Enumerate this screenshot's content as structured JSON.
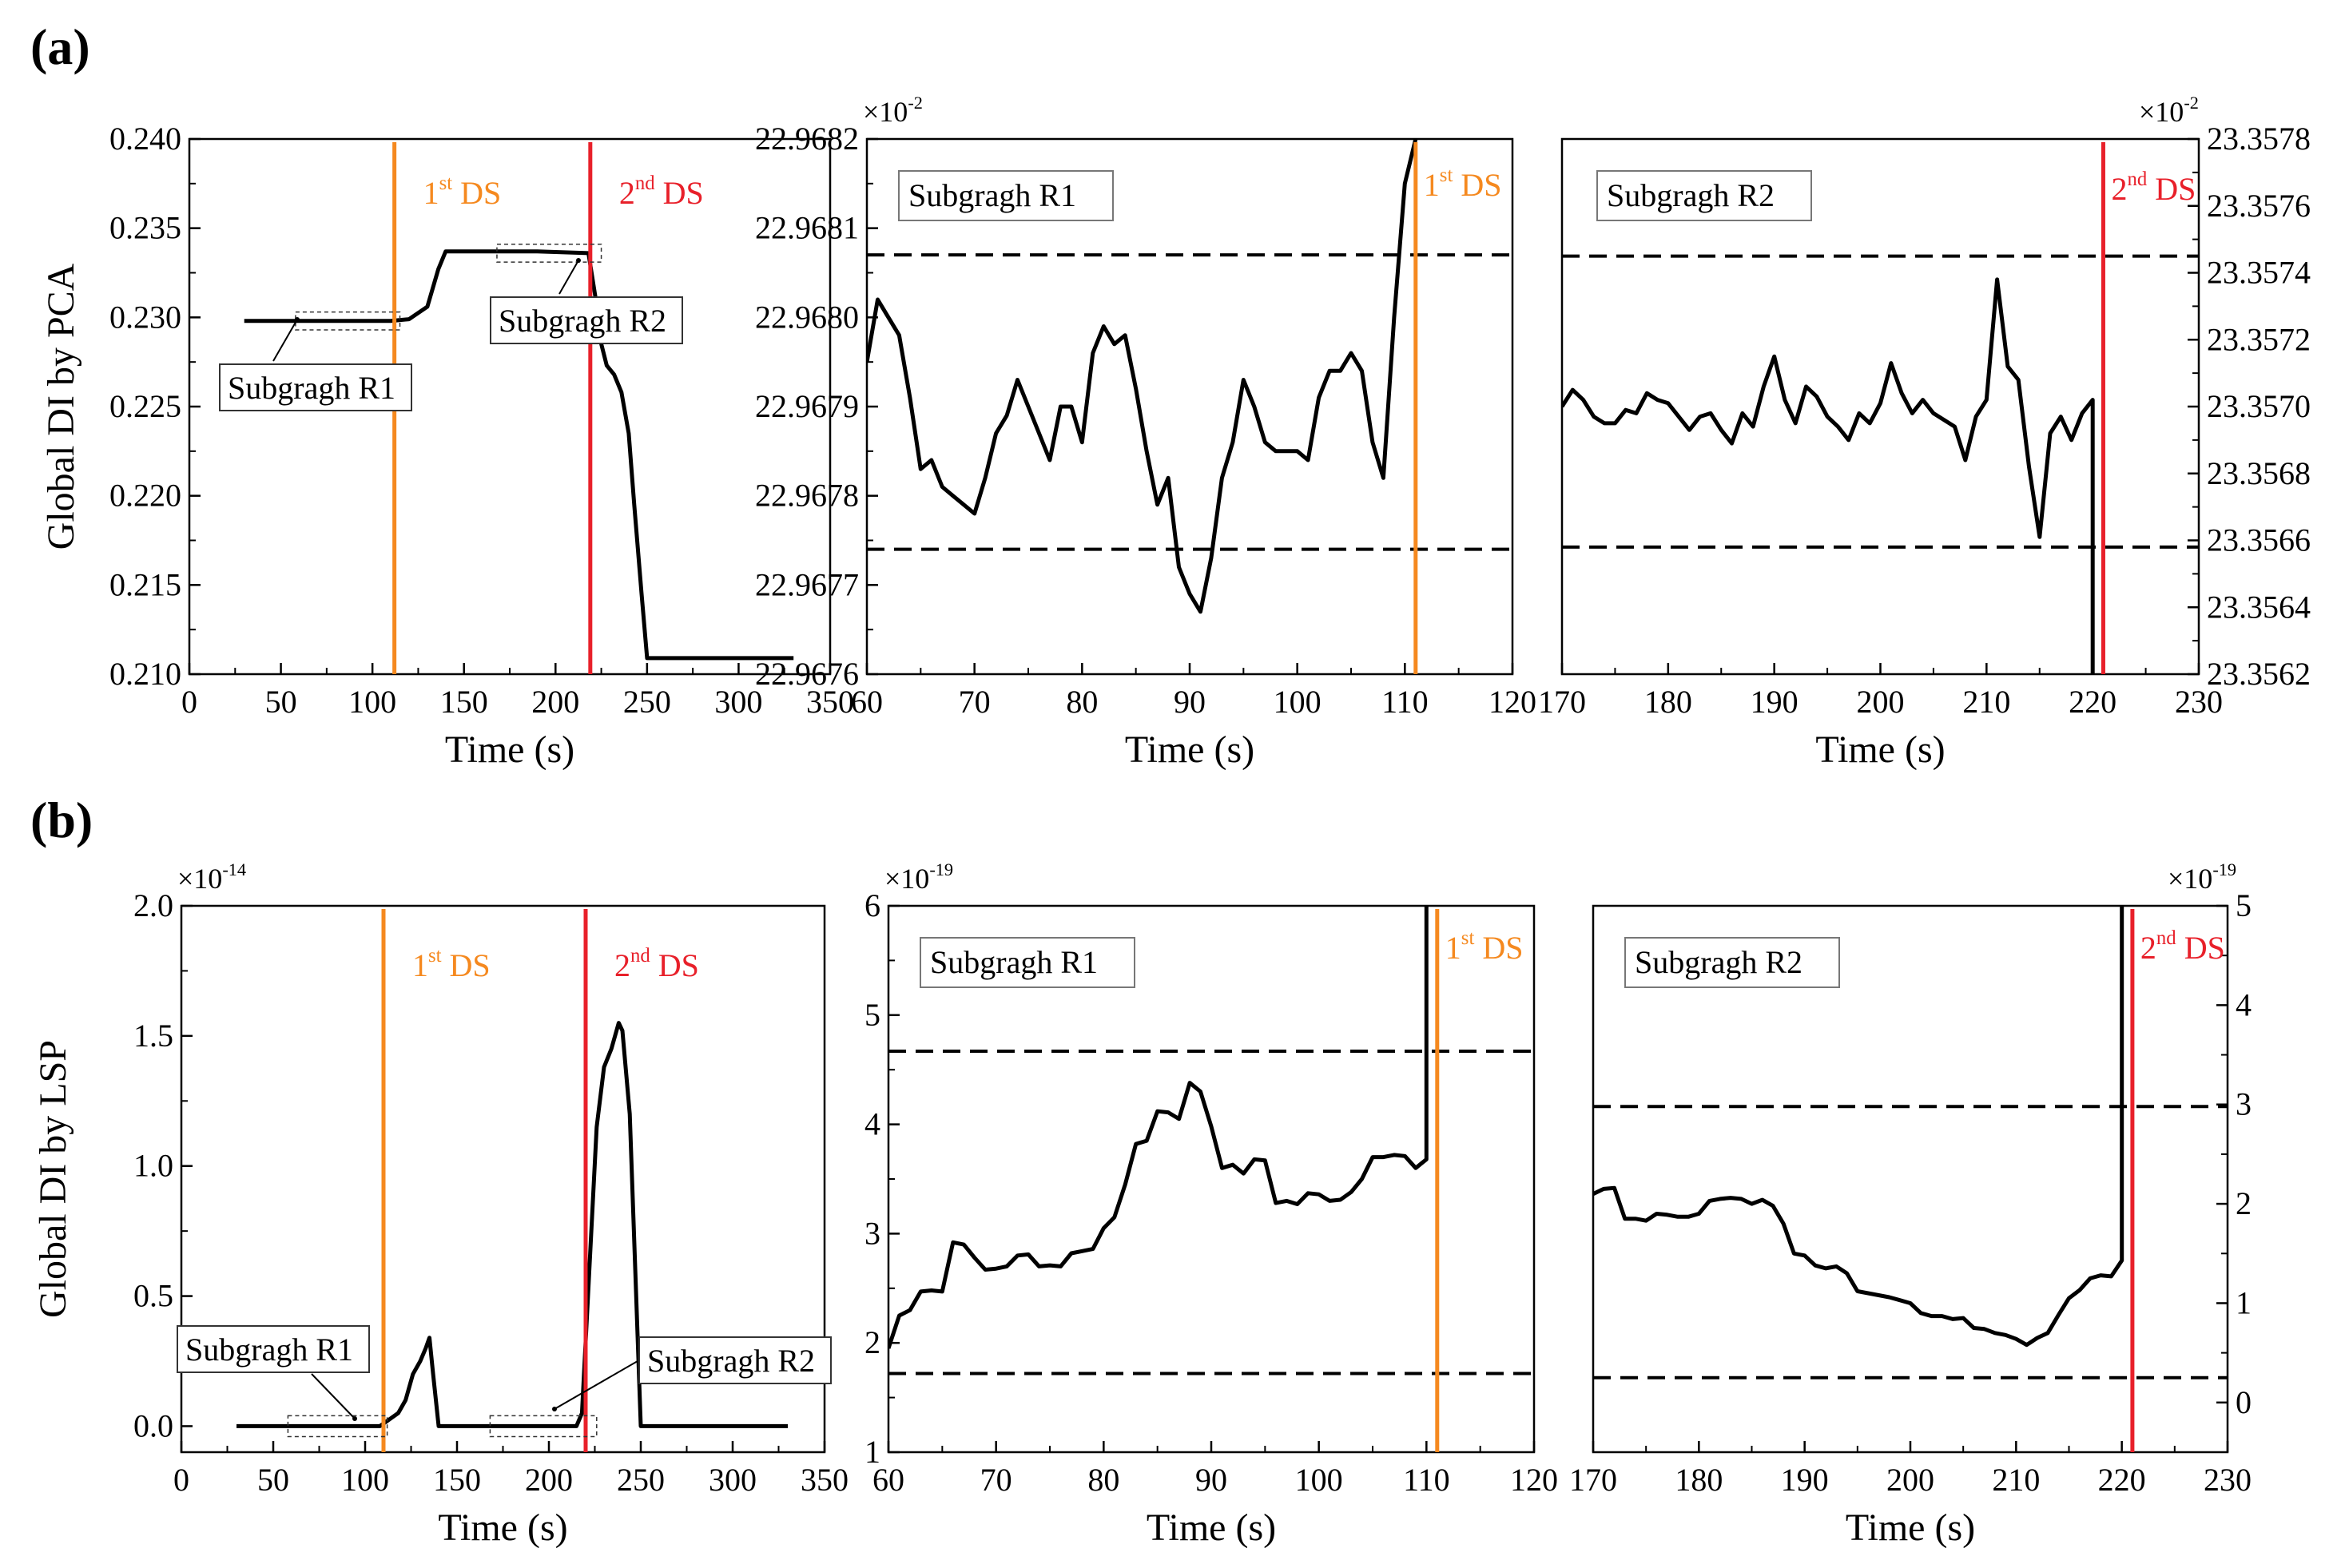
{
  "figure": {
    "panel_a_label": "(a)",
    "panel_b_label": "(b)"
  },
  "colors": {
    "ds1": "#f5891f",
    "ds2": "#e8202a",
    "line": "#000000",
    "frame": "#000000"
  },
  "chart_data": [
    {
      "id": "a-main",
      "type": "line",
      "ylabel": "Global DI by PCA",
      "xlabel": "Time (s)",
      "xlim": [
        0,
        350
      ],
      "ylim": [
        0.21,
        0.24
      ],
      "xticks": [
        0,
        50,
        100,
        150,
        200,
        250,
        300,
        350
      ],
      "xtick_labels": [
        "0",
        "50",
        "100",
        "150",
        "200",
        "250",
        "300",
        "350"
      ],
      "yticks": [
        0.21,
        0.215,
        0.22,
        0.225,
        0.23,
        0.235,
        0.24
      ],
      "ytick_labels": [
        "0.210",
        "0.215",
        "0.220",
        "0.225",
        "0.230",
        "0.235",
        "0.240"
      ],
      "x": [
        30,
        60,
        90,
        110,
        120,
        130,
        136,
        140,
        160,
        190,
        218,
        222,
        225,
        228,
        232,
        236,
        240,
        243,
        247,
        250,
        270,
        300,
        330
      ],
      "y": [
        0.2298,
        0.2298,
        0.2298,
        0.2298,
        0.2299,
        0.2306,
        0.2327,
        0.2337,
        0.2337,
        0.2337,
        0.2336,
        0.231,
        0.2285,
        0.2273,
        0.2268,
        0.2258,
        0.2235,
        0.2195,
        0.2145,
        0.2109,
        0.2109,
        0.2109,
        0.2109
      ],
      "ds_lines": [
        {
          "x": 112,
          "label_base": "1",
          "label_sup": "st",
          "label_tail": " DS",
          "color": "#f5891f"
        },
        {
          "x": 219,
          "label_base": "2",
          "label_sup": "nd",
          "label_tail": " DS",
          "color": "#e8202a"
        }
      ],
      "subgraph_boxes": [
        {
          "x0": 58,
          "x1": 115,
          "y0": 0.2293,
          "y1": 0.2303,
          "label": "Subgragh R1"
        },
        {
          "x0": 168,
          "x1": 225,
          "y0": 0.2331,
          "y1": 0.2341,
          "label": "Subgragh R2"
        }
      ]
    },
    {
      "id": "a-r1",
      "type": "line",
      "title": "Subgragh R1",
      "xlabel": "Time (s)",
      "exponent": "×10",
      "exponent_power": "-2",
      "xlim": [
        60,
        120
      ],
      "ylim": [
        22.9676,
        22.9682
      ],
      "xticks": [
        60,
        70,
        80,
        90,
        100,
        110,
        120
      ],
      "xtick_labels": [
        "60",
        "70",
        "80",
        "90",
        "100",
        "110",
        "120"
      ],
      "yticks": [
        22.9676,
        22.9677,
        22.9678,
        22.9679,
        22.968,
        22.9681,
        22.9682
      ],
      "ytick_labels": [
        "22.9676",
        "22.9677",
        "22.9678",
        "22.9679",
        "22.9680",
        "22.9681",
        "22.9682"
      ],
      "x": [
        60,
        61,
        62,
        63,
        64,
        65,
        66,
        67,
        68,
        69,
        70,
        71,
        72,
        73,
        74,
        75,
        76,
        77,
        78,
        79,
        80,
        81,
        82,
        83,
        84,
        85,
        86,
        87,
        88,
        89,
        90,
        91,
        92,
        93,
        94,
        95,
        96,
        97,
        98,
        99,
        100,
        101,
        102,
        103,
        104,
        105,
        106,
        107,
        108,
        109,
        110,
        111
      ],
      "y": [
        22.96795,
        22.96802,
        22.968,
        22.96798,
        22.96791,
        22.96783,
        22.96784,
        22.96781,
        22.9678,
        22.96779,
        22.96778,
        22.96782,
        22.96787,
        22.96789,
        22.96793,
        22.9679,
        22.96787,
        22.96784,
        22.9679,
        22.9679,
        22.96786,
        22.96796,
        22.96799,
        22.96797,
        22.96798,
        22.96792,
        22.96785,
        22.96779,
        22.96782,
        22.96772,
        22.96769,
        22.96767,
        22.96773,
        22.96782,
        22.96786,
        22.96793,
        22.9679,
        22.96786,
        22.96785,
        22.96785,
        22.96785,
        22.96784,
        22.96791,
        22.96794,
        22.96794,
        22.96796,
        22.96794,
        22.96786,
        22.96782,
        22.968,
        22.96815,
        22.9682
      ],
      "thresholds": [
        22.96807,
        22.96774
      ],
      "ds_line": {
        "x": 111,
        "label_base": "1",
        "label_sup": "st",
        "label_tail": " DS",
        "color": "#f5891f"
      }
    },
    {
      "id": "a-r2",
      "type": "line",
      "title": "Subgragh R2",
      "xlabel": "Time (s)",
      "exponent": "×10",
      "exponent_power": "-2",
      "y_axis_side": "right",
      "xlim": [
        170,
        230
      ],
      "ylim": [
        23.3562,
        23.3578
      ],
      "xticks": [
        170,
        180,
        190,
        200,
        210,
        220,
        230
      ],
      "xtick_labels": [
        "170",
        "180",
        "190",
        "200",
        "210",
        "220",
        "230"
      ],
      "yticks": [
        23.3562,
        23.3564,
        23.3566,
        23.3568,
        23.357,
        23.3572,
        23.3574,
        23.3576,
        23.3578
      ],
      "ytick_labels": [
        "23.3562",
        "23.3564",
        "23.3566",
        "23.3568",
        "23.3570",
        "23.3572",
        "23.3574",
        "23.3576",
        "23.3578"
      ],
      "x": [
        170,
        171,
        172,
        173,
        174,
        175,
        176,
        177,
        178,
        179,
        180,
        181,
        182,
        183,
        184,
        185,
        186,
        187,
        188,
        189,
        190,
        191,
        192,
        193,
        194,
        195,
        196,
        197,
        198,
        199,
        200,
        201,
        202,
        203,
        204,
        205,
        206,
        207,
        208,
        209,
        210,
        211,
        212,
        213,
        214,
        215,
        216,
        217,
        218,
        219,
        220,
        220,
        220
      ],
      "y": [
        23.357,
        23.35705,
        23.35702,
        23.35697,
        23.35695,
        23.35695,
        23.35699,
        23.35698,
        23.35704,
        23.35702,
        23.35701,
        23.35697,
        23.35693,
        23.35697,
        23.35698,
        23.35693,
        23.35689,
        23.35698,
        23.35694,
        23.35706,
        23.35715,
        23.35702,
        23.35695,
        23.35706,
        23.35703,
        23.35697,
        23.35694,
        23.3569,
        23.35698,
        23.35695,
        23.35701,
        23.35713,
        23.35704,
        23.35698,
        23.35702,
        23.35698,
        23.35696,
        23.35694,
        23.35684,
        23.35697,
        23.35702,
        23.35738,
        23.35712,
        23.35708,
        23.35682,
        23.35661,
        23.35692,
        23.35697,
        23.3569,
        23.35698,
        23.35702,
        23.35686,
        23.3562
      ],
      "thresholds": [
        23.35745,
        23.35658
      ],
      "ds_line": {
        "x": 221,
        "label_base": "2",
        "label_sup": "nd",
        "label_tail": " DS",
        "color": "#e8202a"
      }
    },
    {
      "id": "b-main",
      "type": "line",
      "ylabel": "Global DI by LSP",
      "xlabel": "Time (s)",
      "exponent": "×10",
      "exponent_power": "-14",
      "xlim": [
        0,
        350
      ],
      "ylim": [
        -0.1,
        2.0
      ],
      "xticks": [
        0,
        50,
        100,
        150,
        200,
        250,
        300,
        350
      ],
      "xtick_labels": [
        "0",
        "50",
        "100",
        "150",
        "200",
        "250",
        "300",
        "350"
      ],
      "yticks": [
        0.0,
        0.5,
        1.0,
        1.5,
        2.0
      ],
      "ytick_labels": [
        "0.0",
        "0.5",
        "1.0",
        "1.5",
        "2.0"
      ],
      "x": [
        30,
        60,
        90,
        108,
        112,
        118,
        122,
        126,
        130,
        133,
        135,
        137,
        140,
        160,
        190,
        215,
        218,
        222,
        226,
        230,
        234,
        238,
        240,
        244,
        247,
        250,
        270,
        300,
        330
      ],
      "y": [
        0.0,
        0.0,
        0.0,
        0.0,
        0.02,
        0.05,
        0.1,
        0.2,
        0.25,
        0.3,
        0.34,
        0.2,
        0.0,
        0.0,
        0.0,
        0.0,
        0.05,
        0.6,
        1.15,
        1.38,
        1.45,
        1.55,
        1.52,
        1.2,
        0.6,
        0.0,
        0.0,
        0.0,
        0.0
      ],
      "ds_lines": [
        {
          "x": 110,
          "label_base": "1",
          "label_sup": "st",
          "label_tail": " DS",
          "color": "#f5891f"
        },
        {
          "x": 220,
          "label_base": "2",
          "label_sup": "nd",
          "label_tail": " DS",
          "color": "#e8202a"
        }
      ],
      "subgraph_boxes": [
        {
          "x0": 58,
          "x1": 112,
          "y0": -0.04,
          "y1": 0.04,
          "label": "Subgragh R1"
        },
        {
          "x0": 168,
          "x1": 226,
          "y0": -0.04,
          "y1": 0.04,
          "label": "Subgragh R2"
        }
      ]
    },
    {
      "id": "b-r1",
      "type": "line",
      "title": "Subgragh R1",
      "xlabel": "Time (s)",
      "exponent": "×10",
      "exponent_power": "-19",
      "xlim": [
        60,
        120
      ],
      "ylim": [
        1,
        6
      ],
      "xticks": [
        60,
        70,
        80,
        90,
        100,
        110,
        120
      ],
      "xtick_labels": [
        "60",
        "70",
        "80",
        "90",
        "100",
        "110",
        "120"
      ],
      "yticks": [
        1,
        2,
        3,
        4,
        5,
        6
      ],
      "ytick_labels": [
        "1",
        "2",
        "3",
        "4",
        "5",
        "6"
      ],
      "x": [
        60,
        61,
        62,
        63,
        64,
        65,
        66,
        67,
        68,
        69,
        70,
        71,
        72,
        73,
        74,
        75,
        76,
        77,
        78,
        79,
        80,
        81,
        82,
        83,
        84,
        85,
        86,
        87,
        88,
        89,
        90,
        91,
        92,
        93,
        94,
        95,
        96,
        97,
        98,
        99,
        100,
        101,
        102,
        103,
        104,
        105,
        106,
        107,
        108,
        109,
        110,
        110
      ],
      "y": [
        1.95,
        2.25,
        2.3,
        2.47,
        2.48,
        2.47,
        2.92,
        2.9,
        2.78,
        2.67,
        2.68,
        2.7,
        2.8,
        2.81,
        2.7,
        2.71,
        2.7,
        2.82,
        2.84,
        2.86,
        3.05,
        3.15,
        3.45,
        3.82,
        3.85,
        4.12,
        4.11,
        4.05,
        4.38,
        4.3,
        3.98,
        3.6,
        3.63,
        3.55,
        3.68,
        3.67,
        3.28,
        3.3,
        3.27,
        3.37,
        3.36,
        3.3,
        3.31,
        3.38,
        3.5,
        3.7,
        3.7,
        3.72,
        3.71,
        3.6,
        3.68,
        6.0
      ],
      "thresholds": [
        4.67,
        1.72
      ],
      "ds_line": {
        "x": 111,
        "label_base": "1",
        "label_sup": "st",
        "label_tail": " DS",
        "color": "#f5891f"
      }
    },
    {
      "id": "b-r2",
      "type": "line",
      "title": "Subgragh R2",
      "xlabel": "Time (s)",
      "exponent": "×10",
      "exponent_power": "-19",
      "y_axis_side": "right",
      "xlim": [
        170,
        230
      ],
      "ylim": [
        -0.5,
        5
      ],
      "xticks": [
        170,
        180,
        190,
        200,
        210,
        220,
        230
      ],
      "xtick_labels": [
        "170",
        "180",
        "190",
        "200",
        "210",
        "220",
        "230"
      ],
      "yticks": [
        0,
        1,
        2,
        3,
        4,
        5
      ],
      "ytick_labels": [
        "0",
        "1",
        "2",
        "3",
        "4",
        "5"
      ],
      "x": [
        170,
        171,
        172,
        173,
        174,
        175,
        176,
        177,
        178,
        179,
        180,
        181,
        182,
        183,
        184,
        185,
        186,
        187,
        188,
        189,
        190,
        191,
        192,
        193,
        194,
        195,
        196,
        197,
        198,
        199,
        200,
        201,
        202,
        203,
        204,
        205,
        206,
        207,
        208,
        209,
        210,
        211,
        212,
        213,
        214,
        215,
        216,
        217,
        218,
        219,
        220,
        220
      ],
      "y": [
        2.1,
        2.15,
        2.16,
        1.85,
        1.85,
        1.83,
        1.9,
        1.89,
        1.87,
        1.87,
        1.9,
        2.03,
        2.05,
        2.06,
        2.05,
        2.0,
        2.04,
        1.98,
        1.8,
        1.5,
        1.48,
        1.38,
        1.35,
        1.37,
        1.3,
        1.12,
        1.1,
        1.08,
        1.06,
        1.03,
        1.0,
        0.9,
        0.87,
        0.87,
        0.84,
        0.85,
        0.75,
        0.74,
        0.7,
        0.68,
        0.64,
        0.58,
        0.65,
        0.7,
        0.88,
        1.05,
        1.13,
        1.25,
        1.28,
        1.27,
        1.43,
        5.0
      ],
      "thresholds": [
        2.98,
        0.25
      ],
      "ds_line": {
        "x": 221,
        "label_base": "2",
        "label_sup": "nd",
        "label_tail": " DS",
        "color": "#e8202a"
      }
    }
  ]
}
